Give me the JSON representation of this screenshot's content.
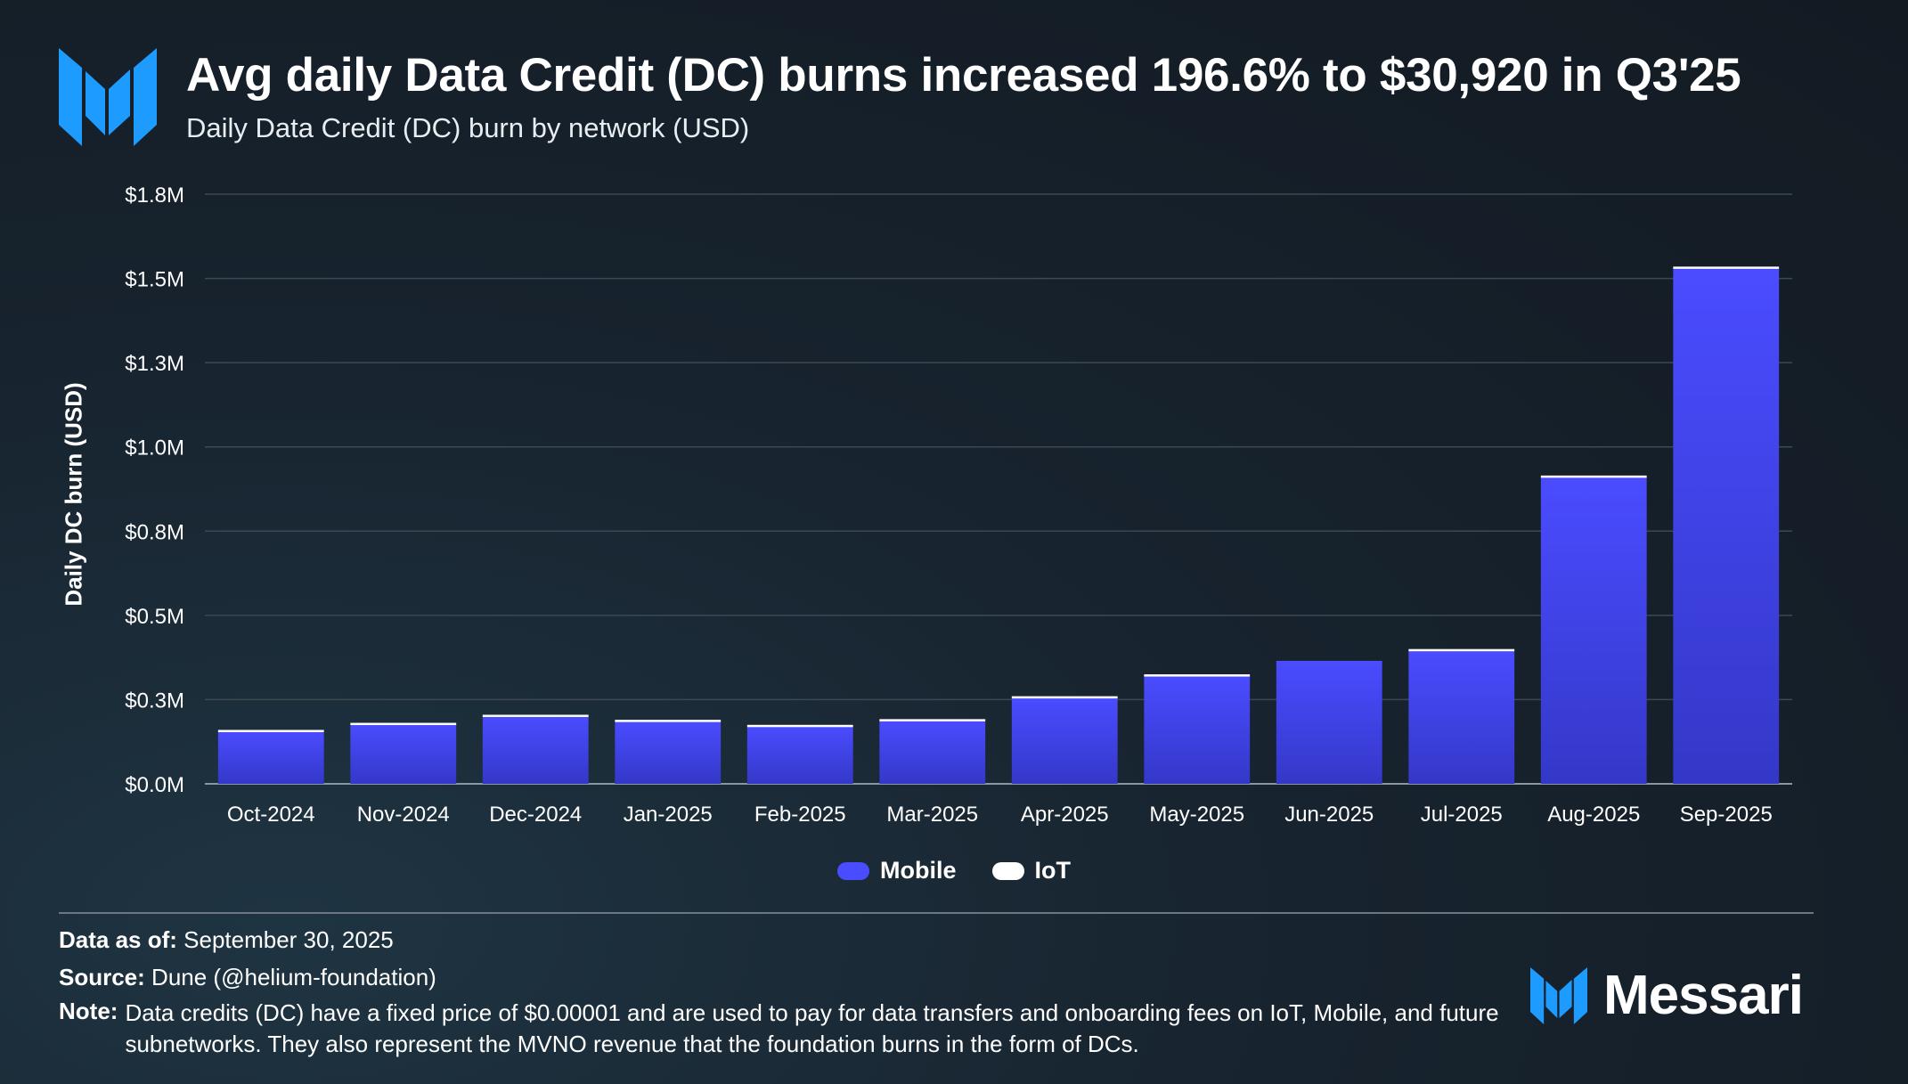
{
  "header": {
    "title": "Avg daily Data Credit (DC) burns increased 196.6% to $30,920 in Q3'25",
    "subtitle": "Daily Data Credit (DC) burn by network (USD)"
  },
  "colors": {
    "mobile": "#4a4cff",
    "iot": "#ffffff",
    "brand_blue": "#1e9bff"
  },
  "chart_data": {
    "type": "bar",
    "stacked": true,
    "ylabel": "Daily DC burn (USD)",
    "ylim": [
      0,
      1750000
    ],
    "yticks": [
      0,
      250000,
      500000,
      750000,
      1000000,
      1250000,
      1500000,
      1750000
    ],
    "ytick_labels": [
      "$0.0M",
      "$0.3M",
      "$0.5M",
      "$0.8M",
      "$1.0M",
      "$1.3M",
      "$1.5M",
      "$1.8M"
    ],
    "grid": true,
    "legend_position": "bottom-center",
    "categories": [
      "Oct-2024",
      "Nov-2024",
      "Dec-2024",
      "Jan-2025",
      "Feb-2025",
      "Mar-2025",
      "Apr-2025",
      "May-2025",
      "Jun-2025",
      "Jul-2025",
      "Aug-2025",
      "Sep-2025"
    ],
    "series": [
      {
        "name": "Mobile",
        "color": "#4a4cff",
        "values": [
          155000,
          176000,
          200000,
          185000,
          170000,
          187000,
          255000,
          320000,
          365000,
          395000,
          910000,
          1530000
        ]
      },
      {
        "name": "IoT",
        "color": "#ffffff",
        "values": [
          5000,
          5000,
          5000,
          5000,
          5000,
          5000,
          5000,
          5000,
          0,
          5000,
          5000,
          5000
        ]
      }
    ]
  },
  "legend": {
    "items": [
      {
        "label": "Mobile",
        "color": "#4a4cff"
      },
      {
        "label": "IoT",
        "color": "#ffffff"
      }
    ]
  },
  "footer": {
    "data_as_of_label": "Data as of:",
    "data_as_of_value": "September 30, 2025",
    "source_label": "Source:",
    "source_value": "Dune (@helium-foundation)",
    "note_label": "Note:",
    "note_value": "Data credits (DC) have a fixed price of $0.00001 and are used to pay for data transfers and onboarding fees on IoT, Mobile, and future subnetworks. They also represent the MVNO revenue that the foundation burns in the form of DCs."
  },
  "brand": {
    "name": "Messari",
    "logo_icon": "messari-m-logo-icon"
  }
}
